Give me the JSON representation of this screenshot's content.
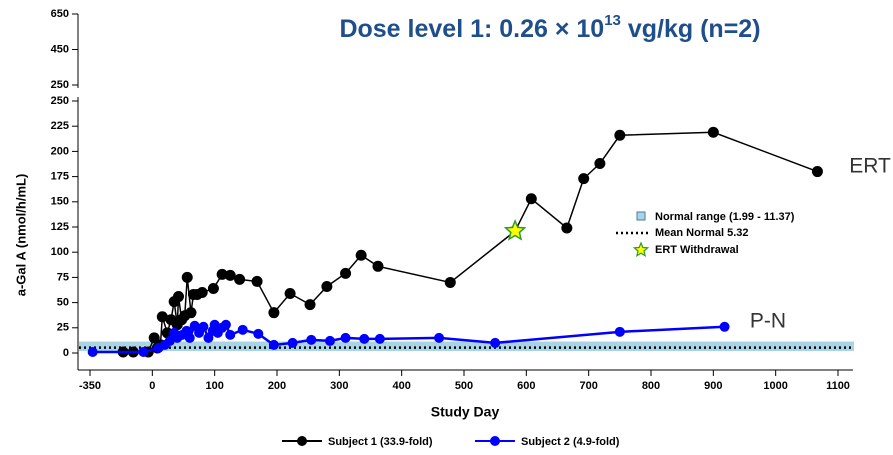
{
  "chart_data": {
    "type": "line",
    "title": [
      "Dose level 1:  0.26 × 10",
      "13",
      " vg/kg (n=2)"
    ],
    "x_label": "Study Day",
    "y_label": "a-Gal A (nmol/h/mL)",
    "xlim": [
      -350,
      1100
    ],
    "xticks": [
      -350,
      0,
      100,
      200,
      300,
      400,
      500,
      600,
      700,
      800,
      900,
      1000,
      1100
    ],
    "ylim": [
      0,
      250
    ],
    "yticks": [
      0,
      25,
      50,
      75,
      100,
      125,
      150,
      175,
      200,
      225,
      250
    ],
    "upper_ylim": [
      250,
      650
    ],
    "upper_yticks": [
      250,
      450,
      650
    ],
    "normal_range": [
      1.99,
      11.37
    ],
    "normal_range_color": "#a8d4e6",
    "normal_range_label": "Normal range (1.99 - 11.37)",
    "mean_normal": 5.32,
    "mean_normal_label": "Mean Normal 5.32",
    "ert_withdrawal": {
      "label": "ERT Withdrawal",
      "x": 582,
      "value": 121
    },
    "annotations": [
      "ERT",
      "P-N"
    ],
    "series": [
      {
        "name": "Subject 1 (33.9-fold)",
        "color": "#000000",
        "x": [
          -164,
          -107,
          -23,
          3,
          8,
          13,
          16,
          24,
          30,
          35,
          40,
          42,
          47,
          52,
          56,
          62,
          66,
          72,
          80,
          98,
          112,
          125,
          140,
          168,
          195,
          221,
          253,
          280,
          310,
          335,
          362,
          478,
          582,
          608,
          665,
          692,
          718,
          750,
          900,
          1067
        ],
        "values": [
          1,
          1,
          1,
          15,
          5,
          8,
          36,
          20,
          33,
          51,
          28,
          56,
          33,
          37,
          75,
          40,
          58,
          58,
          60,
          64,
          78,
          77,
          73,
          71,
          40,
          59,
          48,
          66,
          79,
          97,
          86,
          70,
          121,
          153,
          124,
          173,
          188,
          216,
          219,
          180
        ]
      },
      {
        "name": "Subject 2 (4.9-fold)",
        "color": "#0000ff",
        "x": [
          -335,
          -50,
          10,
          20,
          28,
          35,
          40,
          48,
          55,
          60,
          68,
          75,
          82,
          90,
          97,
          100,
          105,
          112,
          118,
          125,
          145,
          170,
          195,
          225,
          255,
          285,
          310,
          340,
          365,
          460,
          550,
          750,
          918
        ],
        "values": [
          1,
          1,
          5,
          8,
          12,
          20,
          15,
          18,
          22,
          15,
          27,
          20,
          26,
          15,
          22,
          28,
          20,
          25,
          28,
          18,
          23,
          19,
          8,
          10,
          13,
          12,
          15,
          14,
          14,
          15,
          10,
          21,
          26
        ]
      }
    ]
  }
}
